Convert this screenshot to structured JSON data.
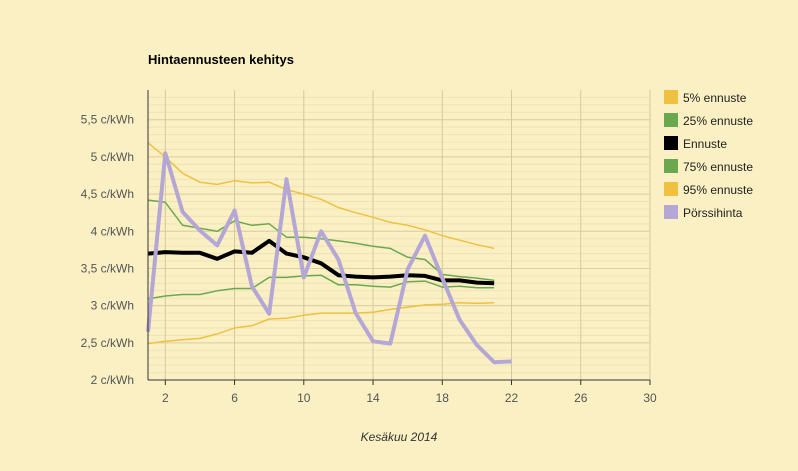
{
  "chart_data": {
    "type": "line",
    "title": "Hintaennusteen kehitys",
    "xlabel": "Kesäkuu 2014",
    "ylabel": "",
    "xlim": [
      1,
      30
    ],
    "ylim": [
      2,
      5.9
    ],
    "x_ticks": [
      2,
      6,
      10,
      14,
      18,
      22,
      26,
      30
    ],
    "y_ticks": [
      {
        "value": 2,
        "label": "2 c/kWh"
      },
      {
        "value": 2.5,
        "label": "2,5 c/kWh"
      },
      {
        "value": 3,
        "label": "3 c/kWh"
      },
      {
        "value": 3.5,
        "label": "3,5 c/kWh"
      },
      {
        "value": 4,
        "label": "4 c/kWh"
      },
      {
        "value": 4.5,
        "label": "4,5 c/kWh"
      },
      {
        "value": 5,
        "label": "5 c/kWh"
      },
      {
        "value": 5.5,
        "label": "5,5 c/kWh"
      }
    ],
    "grid": true,
    "legend_position": "right",
    "series": [
      {
        "name": "5% ennuste",
        "color": "#f0c040",
        "width": 1.5,
        "x": [
          1,
          2,
          3,
          4,
          5,
          6,
          7,
          8,
          9,
          10,
          11,
          12,
          13,
          14,
          15,
          16,
          17,
          18,
          19,
          20,
          21
        ],
        "values": [
          2.49,
          2.52,
          2.54,
          2.56,
          2.62,
          2.7,
          2.73,
          2.82,
          2.83,
          2.87,
          2.9,
          2.9,
          2.9,
          2.91,
          2.95,
          2.98,
          3.01,
          3.02,
          3.04,
          3.03,
          3.04
        ]
      },
      {
        "name": "25% ennuste",
        "color": "#6aa84f",
        "width": 1.5,
        "x": [
          1,
          2,
          3,
          4,
          5,
          6,
          7,
          8,
          9,
          10,
          11,
          12,
          13,
          14,
          15,
          16,
          17,
          18,
          19,
          20,
          21
        ],
        "values": [
          3.09,
          3.13,
          3.15,
          3.15,
          3.2,
          3.23,
          3.23,
          3.38,
          3.38,
          3.4,
          3.41,
          3.28,
          3.28,
          3.26,
          3.25,
          3.32,
          3.33,
          3.25,
          3.26,
          3.24,
          3.24
        ]
      },
      {
        "name": "Ennuste",
        "color": "#000000",
        "width": 4,
        "x": [
          1,
          2,
          3,
          4,
          5,
          6,
          7,
          8,
          9,
          10,
          11,
          12,
          13,
          14,
          15,
          16,
          17,
          18,
          19,
          20,
          21
        ],
        "values": [
          3.7,
          3.72,
          3.71,
          3.71,
          3.63,
          3.73,
          3.71,
          3.87,
          3.7,
          3.65,
          3.57,
          3.41,
          3.39,
          3.38,
          3.39,
          3.41,
          3.4,
          3.34,
          3.34,
          3.31,
          3.3
        ]
      },
      {
        "name": "75% ennuste",
        "color": "#6aa84f",
        "width": 1.5,
        "x": [
          1,
          2,
          3,
          4,
          5,
          6,
          7,
          8,
          9,
          10,
          11,
          12,
          13,
          14,
          15,
          16,
          17,
          18,
          19,
          20,
          21
        ],
        "values": [
          4.42,
          4.39,
          4.08,
          4.04,
          4.0,
          4.14,
          4.08,
          4.1,
          3.92,
          3.92,
          3.9,
          3.87,
          3.84,
          3.8,
          3.77,
          3.65,
          3.62,
          3.42,
          3.39,
          3.37,
          3.34
        ]
      },
      {
        "name": "95% ennuste",
        "color": "#f0c040",
        "width": 1.5,
        "x": [
          1,
          2,
          3,
          4,
          5,
          6,
          7,
          8,
          9,
          10,
          11,
          12,
          13,
          14,
          15,
          16,
          17,
          18,
          19,
          20,
          21
        ],
        "values": [
          5.19,
          5.0,
          4.78,
          4.66,
          4.63,
          4.68,
          4.65,
          4.66,
          4.56,
          4.5,
          4.43,
          4.32,
          4.25,
          4.19,
          4.12,
          4.08,
          4.02,
          3.94,
          3.88,
          3.82,
          3.77
        ]
      },
      {
        "name": "Pörssihinta",
        "color": "#b4a7d6",
        "width": 4,
        "x": [
          1,
          2,
          3,
          4,
          5,
          6,
          7,
          8,
          9,
          10,
          11,
          12,
          13,
          14,
          15,
          16,
          17,
          18,
          19,
          20,
          21,
          22
        ],
        "values": [
          2.65,
          5.05,
          4.26,
          4.01,
          3.81,
          4.28,
          3.26,
          2.89,
          4.7,
          3.38,
          4.0,
          3.62,
          2.9,
          2.52,
          2.49,
          3.49,
          3.94,
          3.37,
          2.81,
          2.47,
          2.24,
          2.25
        ]
      }
    ]
  }
}
